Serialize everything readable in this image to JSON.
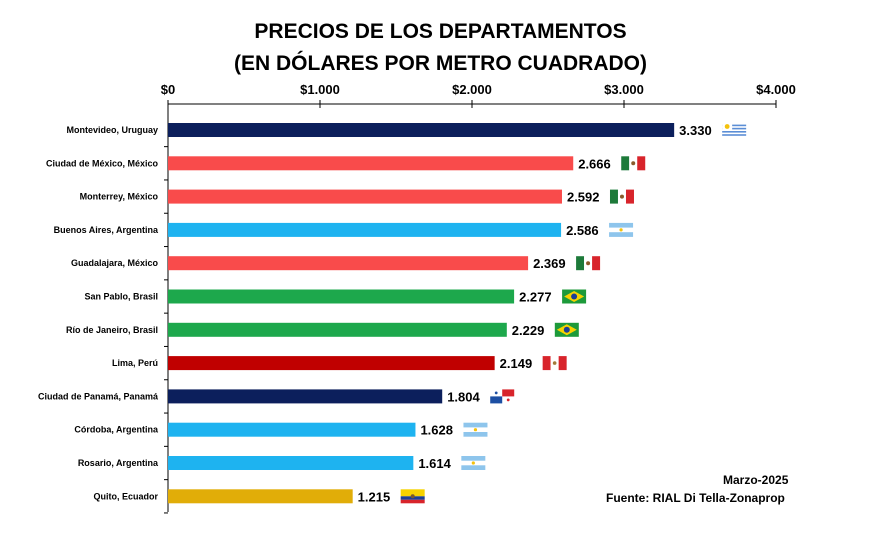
{
  "chart_data": {
    "type": "bar",
    "orientation": "horizontal",
    "title": "PRECIOS DE LOS DEPARTAMENTOS",
    "subtitle": "(EN DÓLARES POR METRO CUADRADO)",
    "xlim": [
      0,
      4000
    ],
    "ticks": [
      0,
      1000,
      2000,
      3000,
      4000
    ],
    "tick_labels": [
      "$0",
      "$1.000",
      "$2.000",
      "$3.000",
      "$4.000"
    ],
    "axis_position": "top",
    "grid": false,
    "categories": [
      "Montevideo, Uruguay",
      "Ciudad de México, México",
      "Monterrey, México",
      "Buenos Aires, Argentina",
      "Guadalajara, México",
      "San Pablo, Brasil",
      "Río de Janeiro, Brasil",
      "Lima, Perú",
      "Ciudad de Panamá, Panamá",
      "Córdoba, Argentina",
      "Rosario, Argentina",
      "Quito, Ecuador"
    ],
    "values": [
      3330,
      2666,
      2592,
      2586,
      2369,
      2277,
      2229,
      2149,
      1804,
      1628,
      1614,
      1215
    ],
    "value_labels": [
      "3.330",
      "2.666",
      "2.592",
      "2.586",
      "2.369",
      "2.277",
      "2.229",
      "2.149",
      "1.804",
      "1.628",
      "1.614",
      "1.215"
    ],
    "colors": [
      "#0c1f5c",
      "#f94b4b",
      "#f94b4b",
      "#1eb3f0",
      "#f94b4b",
      "#1da84c",
      "#1da84c",
      "#c00000",
      "#0c1f5c",
      "#1eb3f0",
      "#1eb3f0",
      "#e1ad08"
    ],
    "flags": [
      "uruguay-flag",
      "mexico-flag",
      "mexico-flag",
      "argentina-flag",
      "mexico-flag",
      "brazil-flag",
      "brazil-flag",
      "peru-flag",
      "panama-flag",
      "argentina-flag",
      "argentina-flag",
      "ecuador-flag"
    ],
    "annotations": [
      "Marzo-2025",
      "Fuente: RIAL Di Tella-Zonaprop"
    ]
  }
}
